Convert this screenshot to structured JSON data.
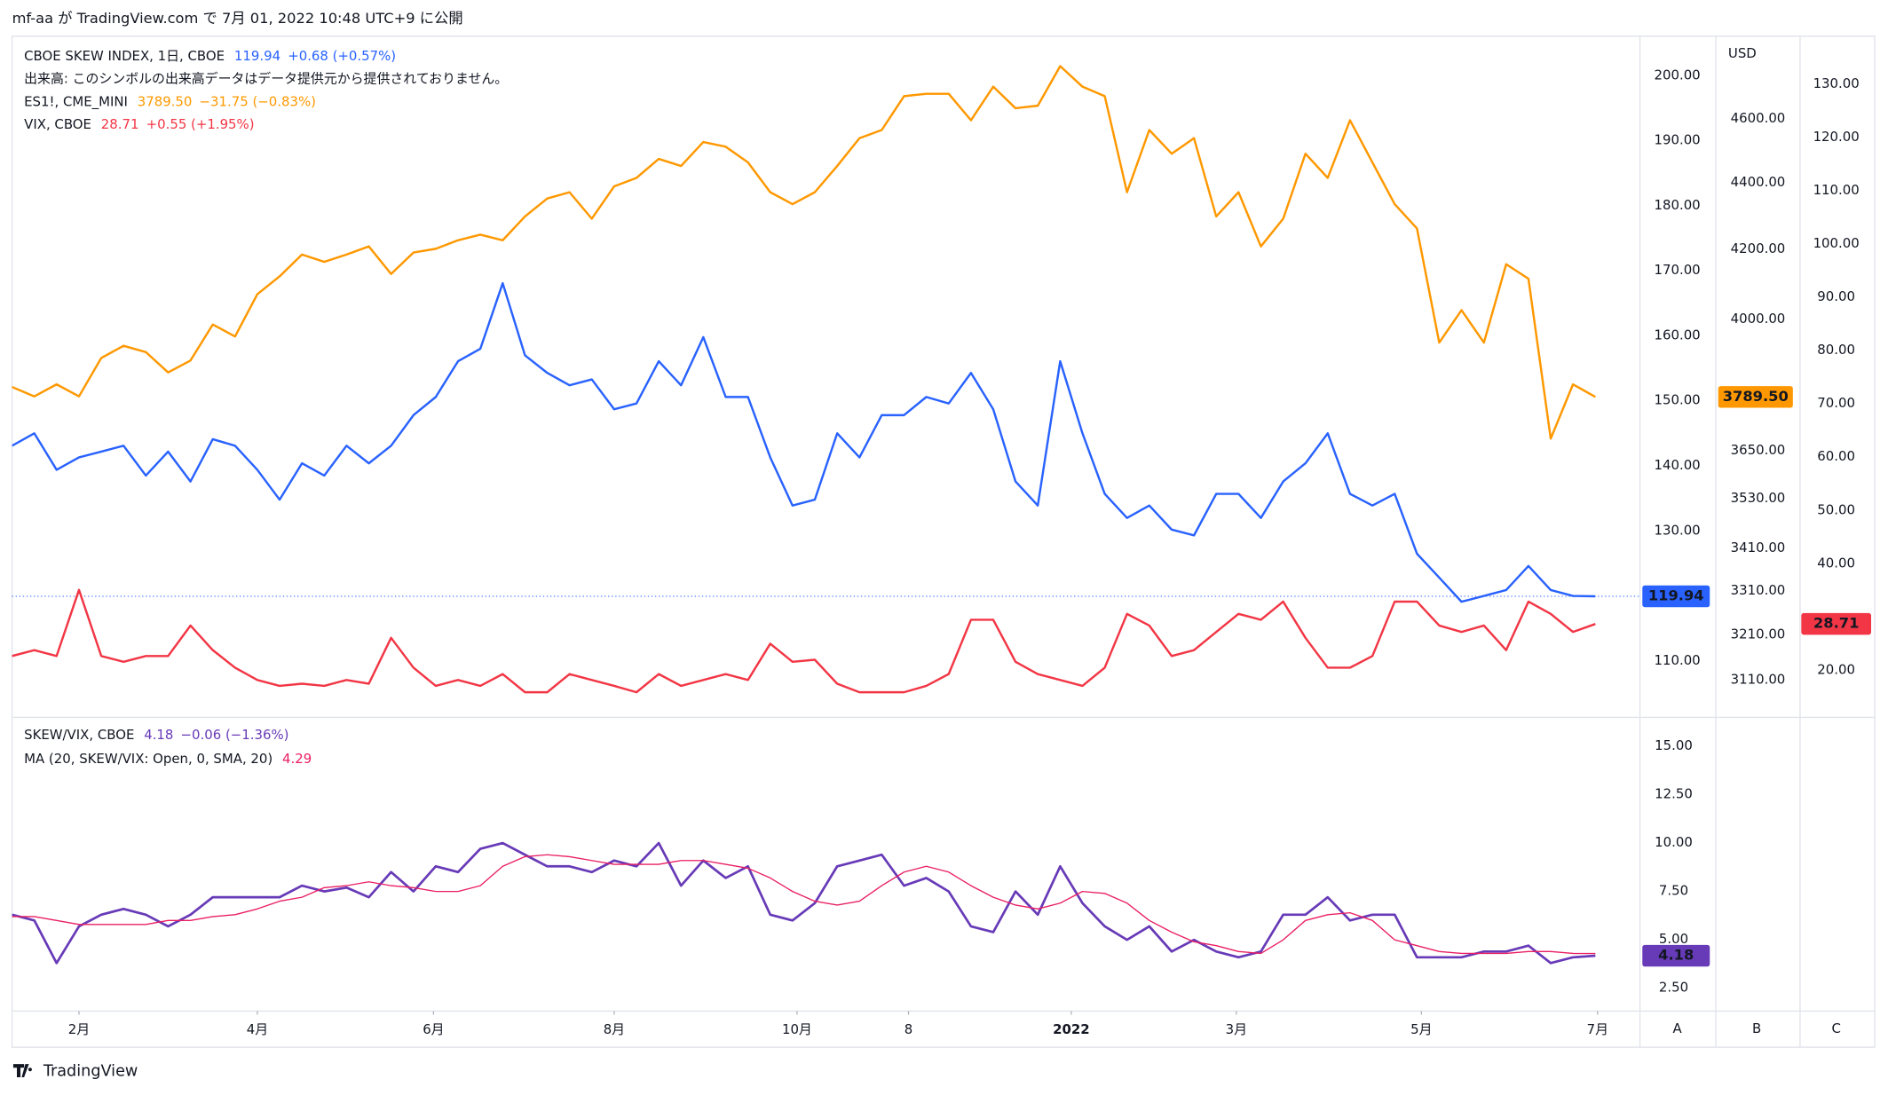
{
  "header": {
    "text": "mf-aa が TradingView.com で 7月 01, 2022 10:48 UTC+9 に公開"
  },
  "chart_data": [
    {
      "type": "line",
      "grid": false,
      "xlim": [
        0,
        73
      ],
      "xticks": [
        {
          "value": 3.0,
          "label": "2月"
        },
        {
          "value": 11.0,
          "label": "4月"
        },
        {
          "value": 18.9,
          "label": "6月"
        },
        {
          "value": 27.0,
          "label": "8月"
        },
        {
          "value": 35.2,
          "label": "10月"
        },
        {
          "value": 40.2,
          "label": "8"
        },
        {
          "value": 47.5,
          "label": "2022"
        },
        {
          "value": 54.9,
          "label": "3月"
        },
        {
          "value": 63.2,
          "label": "5月"
        },
        {
          "value": 71.1,
          "label": "7月"
        }
      ],
      "volume_note": "出来高: このシンボルの出来高データはデータ提供元から提供されておりません。",
      "ylim": [
        101.5,
        206.1
      ],
      "yticks": [
        {
          "value": 110,
          "label": "110.00"
        },
        {
          "value": 130,
          "label": "130.00"
        },
        {
          "value": 140,
          "label": "140.00"
        },
        {
          "value": 150,
          "label": "150.00"
        },
        {
          "value": 160,
          "label": "160.00"
        },
        {
          "value": 170,
          "label": "170.00"
        },
        {
          "value": 180,
          "label": "180.00"
        },
        {
          "value": 190,
          "label": "190.00"
        },
        {
          "value": 200,
          "label": "200.00"
        }
      ],
      "y2lim": [
        3033,
        4874
      ],
      "y2scale": "log",
      "y2unit": "USD",
      "y2ticks": [
        {
          "value": 3110,
          "label": "3110.00"
        },
        {
          "value": 3210,
          "label": "3210.00"
        },
        {
          "value": 3310,
          "label": "3310.00"
        },
        {
          "value": 3410,
          "label": "3410.00"
        },
        {
          "value": 3530,
          "label": "3530.00"
        },
        {
          "value": 3650,
          "label": "3650.00"
        },
        {
          "value": 4000,
          "label": "4000.00"
        },
        {
          "value": 4200,
          "label": "4200.00"
        },
        {
          "value": 4400,
          "label": "4400.00"
        },
        {
          "value": 4600,
          "label": "4600.00"
        }
      ],
      "y3lim": [
        11.4,
        139.0
      ],
      "y3ticks": [
        {
          "value": 20,
          "label": "20.00"
        },
        {
          "value": 40,
          "label": "40.00"
        },
        {
          "value": 50,
          "label": "50.00"
        },
        {
          "value": 60,
          "label": "60.00"
        },
        {
          "value": 70,
          "label": "70.00"
        },
        {
          "value": 80,
          "label": "80.00"
        },
        {
          "value": 90,
          "label": "90.00"
        },
        {
          "value": 100,
          "label": "100.00"
        },
        {
          "value": 110,
          "label": "110.00"
        },
        {
          "value": 120,
          "label": "120.00"
        },
        {
          "value": 130,
          "label": "130.00"
        }
      ],
      "series": [
        {
          "name": "CBOE SKEW INDEX, 1日, CBOE",
          "color": "#2962ff",
          "axis": "y",
          "last_label": "119.94",
          "change": "+0.68 (+0.57%)",
          "values": [
            143.1,
            145.0,
            139.4,
            141.3,
            142.2,
            143.1,
            138.5,
            142.2,
            137.6,
            144.1,
            143.1,
            139.4,
            134.8,
            140.4,
            138.5,
            143.1,
            140.4,
            143.1,
            147.8,
            150.6,
            156.1,
            158.0,
            168.1,
            157.0,
            154.3,
            152.4,
            153.3,
            148.7,
            149.6,
            156.1,
            152.4,
            159.8,
            150.6,
            150.6,
            141.3,
            133.9,
            134.8,
            145.0,
            141.3,
            147.8,
            147.8,
            150.6,
            149.6,
            154.3,
            148.7,
            137.6,
            133.9,
            156.1,
            145.0,
            135.7,
            132.0,
            133.9,
            130.2,
            129.3,
            135.7,
            135.7,
            132.0,
            137.6,
            140.4,
            145.0,
            135.7,
            133.9,
            135.7,
            126.5,
            122.8,
            119.1,
            120.0,
            120.9,
            124.6,
            120.9,
            120.0,
            119.94
          ]
        },
        {
          "name": "ES1!, CME_MINI",
          "color": "#ff9800",
          "axis": "y2",
          "last_label": "3789.50",
          "change": "−31.75 (−0.83%)",
          "values": [
            3816,
            3791,
            3823,
            3791,
            3894,
            3927,
            3910,
            3855,
            3887,
            3986,
            3953,
            4071,
            4122,
            4185,
            4164,
            4185,
            4209,
            4129,
            4191,
            4202,
            4227,
            4244,
            4227,
            4298,
            4352,
            4371,
            4291,
            4389,
            4415,
            4474,
            4452,
            4527,
            4512,
            4463,
            4371,
            4335,
            4371,
            4452,
            4539,
            4565,
            4674,
            4682,
            4682,
            4596,
            4705,
            4635,
            4643,
            4773,
            4705,
            4674,
            4371,
            4565,
            4490,
            4539,
            4298,
            4371,
            4209,
            4291,
            4490,
            4415,
            4596,
            4463,
            4335,
            4262,
            3936,
            4026,
            3936,
            4157,
            4115,
            3681,
            3823,
            3789.5
          ]
        },
        {
          "name": "VIX, CBOE",
          "color": "#f23645",
          "axis": "y3",
          "last_label": "28.71",
          "change": "+0.55 (+1.95%)",
          "values": [
            22.7,
            23.8,
            22.7,
            35.1,
            22.7,
            21.6,
            22.7,
            22.7,
            28.4,
            23.8,
            20.5,
            18.2,
            17.1,
            17.5,
            17.1,
            18.2,
            17.5,
            26.1,
            20.5,
            17.1,
            18.2,
            17.1,
            19.3,
            15.9,
            15.9,
            19.3,
            18.2,
            17.1,
            15.9,
            19.3,
            17.1,
            18.2,
            19.3,
            18.2,
            25.0,
            21.6,
            22.0,
            17.5,
            15.9,
            15.9,
            15.9,
            17.1,
            19.3,
            29.5,
            29.5,
            21.6,
            19.3,
            18.2,
            17.1,
            20.5,
            30.6,
            28.4,
            22.7,
            23.8,
            27.2,
            30.6,
            29.5,
            32.9,
            26.1,
            20.5,
            20.5,
            22.7,
            32.9,
            32.9,
            28.4,
            27.2,
            28.4,
            23.8,
            32.9,
            30.6,
            27.2,
            28.71
          ]
        }
      ]
    },
    {
      "type": "line",
      "grid": false,
      "ylim": [
        1.32,
        16.43
      ],
      "yticks": [
        {
          "value": 2.5,
          "label": "2.50"
        },
        {
          "value": 5,
          "label": "5.00"
        },
        {
          "value": 7.5,
          "label": "7.50"
        },
        {
          "value": 10,
          "label": "10.00"
        },
        {
          "value": 12.5,
          "label": "12.50"
        },
        {
          "value": 15,
          "label": "15.00"
        }
      ],
      "series": [
        {
          "name": "SKEW/VIX, CBOE",
          "color": "#673ab7",
          "width": 2,
          "last_label": "4.18",
          "change": "−0.06 (−1.36%)",
          "values": [
            6.3,
            6.0,
            3.8,
            5.7,
            6.3,
            6.6,
            6.3,
            5.7,
            6.3,
            7.2,
            7.2,
            7.2,
            7.2,
            7.8,
            7.5,
            7.7,
            7.2,
            8.5,
            7.5,
            8.8,
            8.5,
            9.7,
            10.0,
            9.4,
            8.8,
            8.8,
            8.5,
            9.1,
            8.8,
            10.0,
            7.8,
            9.1,
            8.2,
            8.8,
            6.3,
            6.0,
            6.9,
            8.8,
            9.1,
            9.4,
            7.8,
            8.2,
            7.5,
            5.7,
            5.4,
            7.5,
            6.3,
            8.8,
            6.9,
            5.7,
            5.0,
            5.7,
            4.4,
            5.0,
            4.4,
            4.1,
            4.4,
            6.3,
            6.3,
            7.2,
            6.0,
            6.3,
            6.3,
            4.1,
            4.1,
            4.1,
            4.4,
            4.4,
            4.7,
            3.8,
            4.1,
            4.18
          ]
        },
        {
          "name": "MA (20, SKEW/VIX: Open, 0, SMA, 20)",
          "color": "#e91e63",
          "width": 1,
          "last_label": "4.29",
          "values": [
            6.2,
            6.2,
            6.0,
            5.8,
            5.8,
            5.8,
            5.8,
            6.0,
            6.0,
            6.2,
            6.3,
            6.6,
            7.0,
            7.2,
            7.7,
            7.8,
            8.0,
            7.8,
            7.7,
            7.5,
            7.5,
            7.8,
            8.8,
            9.3,
            9.4,
            9.3,
            9.1,
            8.9,
            8.9,
            8.9,
            9.1,
            9.1,
            8.9,
            8.7,
            8.2,
            7.5,
            7.0,
            6.8,
            7.0,
            7.8,
            8.5,
            8.8,
            8.5,
            7.8,
            7.2,
            6.8,
            6.6,
            6.9,
            7.5,
            7.4,
            6.9,
            6.0,
            5.4,
            4.9,
            4.7,
            4.4,
            4.3,
            5.0,
            6.0,
            6.3,
            6.4,
            6.0,
            5.0,
            4.7,
            4.4,
            4.3,
            4.3,
            4.3,
            4.4,
            4.4,
            4.3,
            4.29
          ]
        }
      ]
    }
  ],
  "axis_buttons": [
    "A",
    "B",
    "C"
  ],
  "footer": "TradingView"
}
